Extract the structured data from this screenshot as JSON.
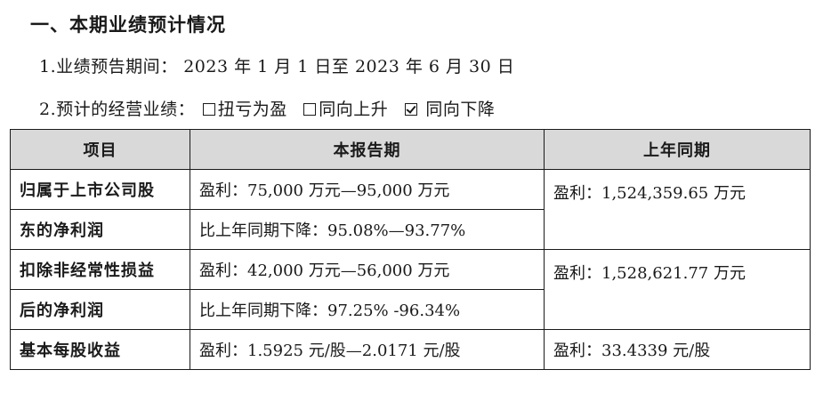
{
  "heading": "一、本期业绩预计情况",
  "period": {
    "label": "1.业绩预告期间：",
    "value": "2023 年 1 月 1 日至 2023 年 6 月 30 日"
  },
  "forecast": {
    "label": "2.预计的经营业绩：",
    "options": [
      {
        "label": "扭亏为盈",
        "checked": false
      },
      {
        "label": "同向上升",
        "checked": false
      },
      {
        "label": "同向下降",
        "checked": true
      }
    ]
  },
  "table": {
    "headers": [
      "项目",
      "本报告期",
      "上年同期"
    ],
    "rows": [
      {
        "item_line1": "归属于上市公司股",
        "item_line2": "东的净利润",
        "current_line1": "盈利：75,000 万元—95,000 万元",
        "current_line2": "比上年同期下降：95.08%—93.77%",
        "prior": "盈利：1,524,359.65 万元"
      },
      {
        "item_line1": "扣除非经常性损益",
        "item_line2": "后的净利润",
        "current_line1": "盈利：42,000 万元—56,000 万元",
        "current_line2": "比上年同期下降：97.25% -96.34%",
        "prior": "盈利：1,528,621.77 万元"
      },
      {
        "item": "基本每股收益",
        "current": "盈利：1.5925 元/股—2.0171 元/股",
        "prior": "盈利：33.4339 元/股"
      }
    ]
  }
}
